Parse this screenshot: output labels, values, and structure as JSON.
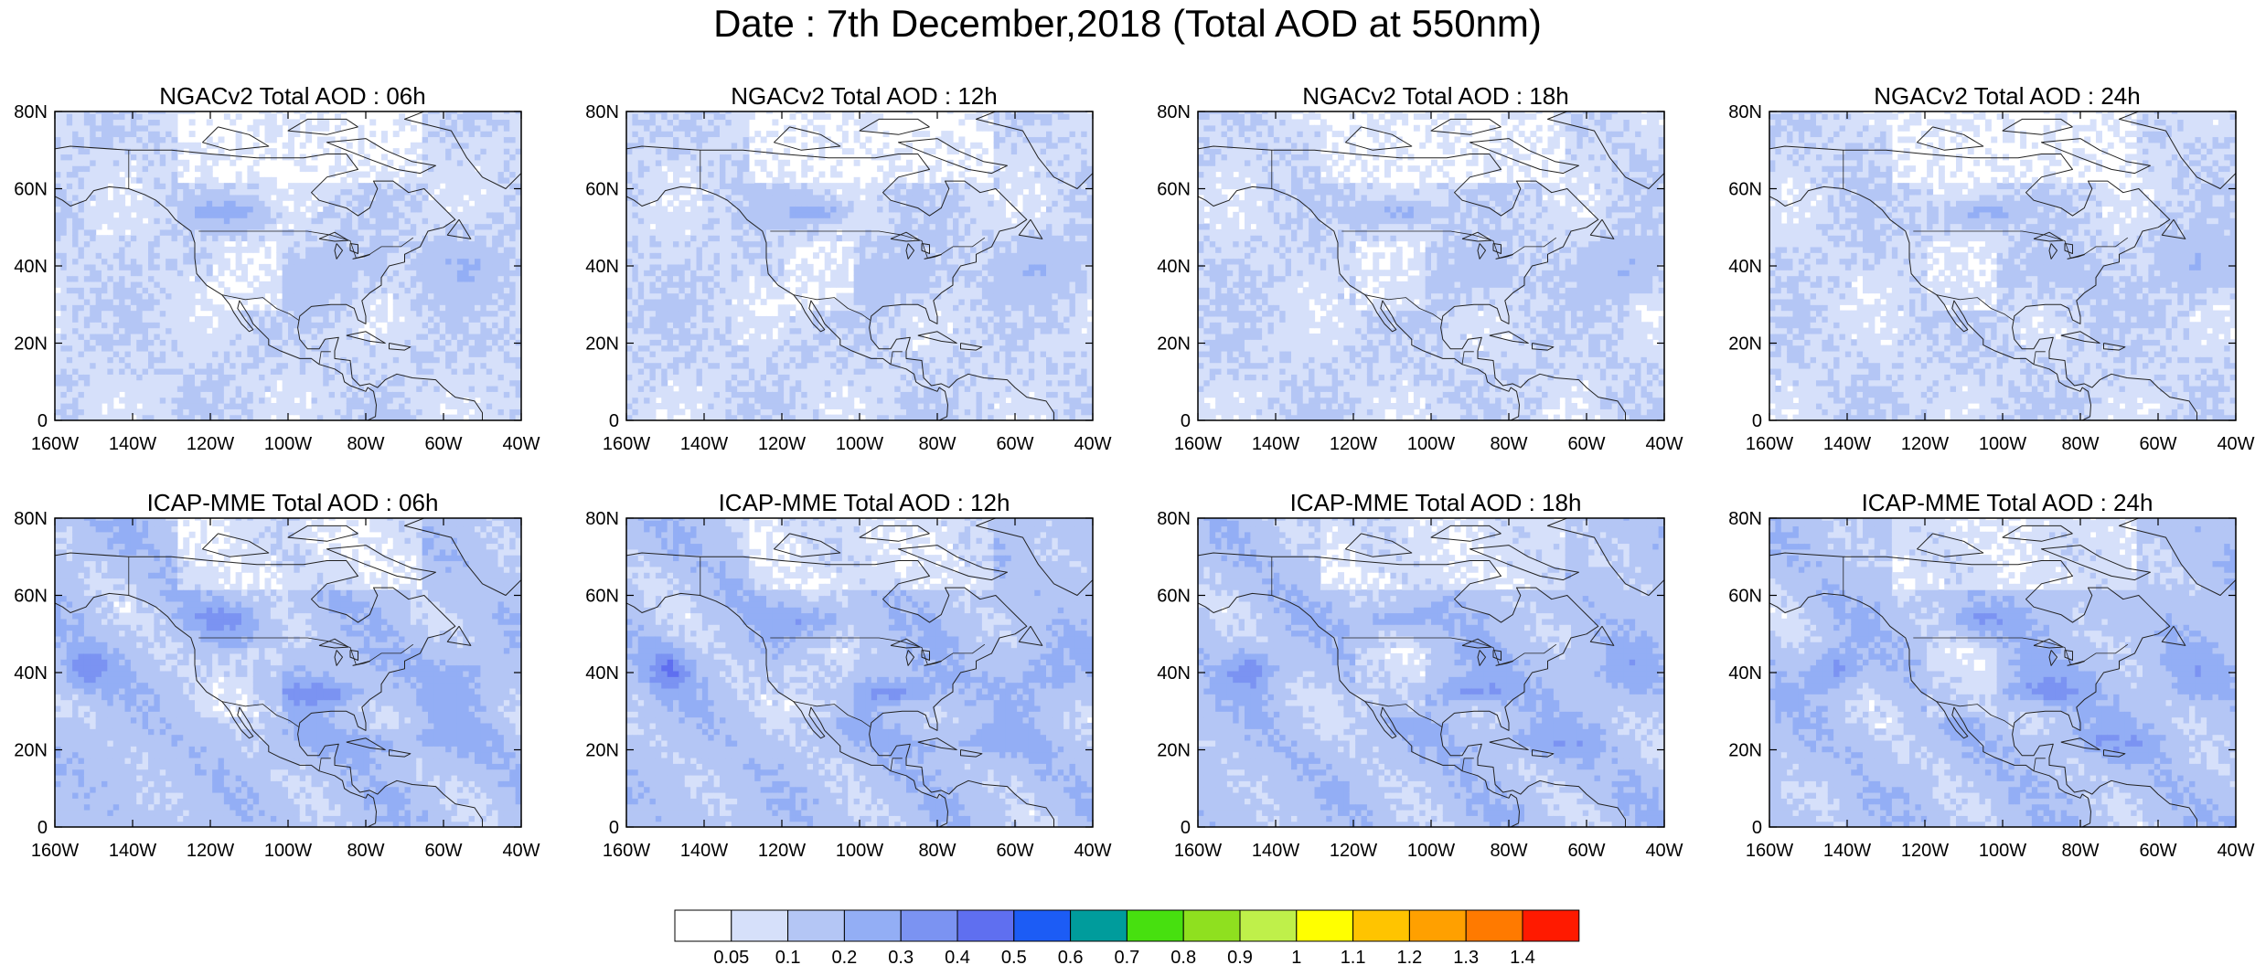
{
  "title": "Date : 7th December,2018 (Total AOD at 550nm)",
  "panels": [
    {
      "title": "NGACv2 Total AOD : 06h",
      "model": "NGACv2",
      "hour": "06h"
    },
    {
      "title": "NGACv2 Total AOD : 12h",
      "model": "NGACv2",
      "hour": "12h"
    },
    {
      "title": "NGACv2 Total AOD : 18h",
      "model": "NGACv2",
      "hour": "18h"
    },
    {
      "title": "NGACv2 Total AOD : 24h",
      "model": "NGACv2",
      "hour": "24h"
    },
    {
      "title": "ICAP-MME Total AOD : 06h",
      "model": "ICAP-MME",
      "hour": "06h"
    },
    {
      "title": "ICAP-MME Total AOD : 12h",
      "model": "ICAP-MME",
      "hour": "12h"
    },
    {
      "title": "ICAP-MME Total AOD : 18h",
      "model": "ICAP-MME",
      "hour": "18h"
    },
    {
      "title": "ICAP-MME Total AOD : 24h",
      "model": "ICAP-MME",
      "hour": "24h"
    }
  ],
  "axes": {
    "lat_ticks": [
      "0",
      "20N",
      "40N",
      "60N",
      "80N"
    ],
    "lon_ticks": [
      "160W",
      "140W",
      "120W",
      "100W",
      "80W",
      "60W",
      "40W"
    ],
    "lat_range": [
      0,
      80
    ],
    "lon_range": [
      -160,
      -40
    ]
  },
  "colorbar": {
    "labels": [
      "0.05",
      "0.1",
      "0.2",
      "0.3",
      "0.4",
      "0.5",
      "0.6",
      "0.7",
      "0.8",
      "0.9",
      "1",
      "1.1",
      "1.2",
      "1.3",
      "1.4"
    ],
    "colors": [
      "#ffffff",
      "#d6e0fa",
      "#b4c6f5",
      "#93aef5",
      "#7b93f2",
      "#5f6ff0",
      "#1c5cf5",
      "#009c9c",
      "#47e00f",
      "#8fe01f",
      "#bff04a",
      "#ffff00",
      "#ffc400",
      "#ffa000",
      "#ff7a00",
      "#ff1a00"
    ]
  }
}
